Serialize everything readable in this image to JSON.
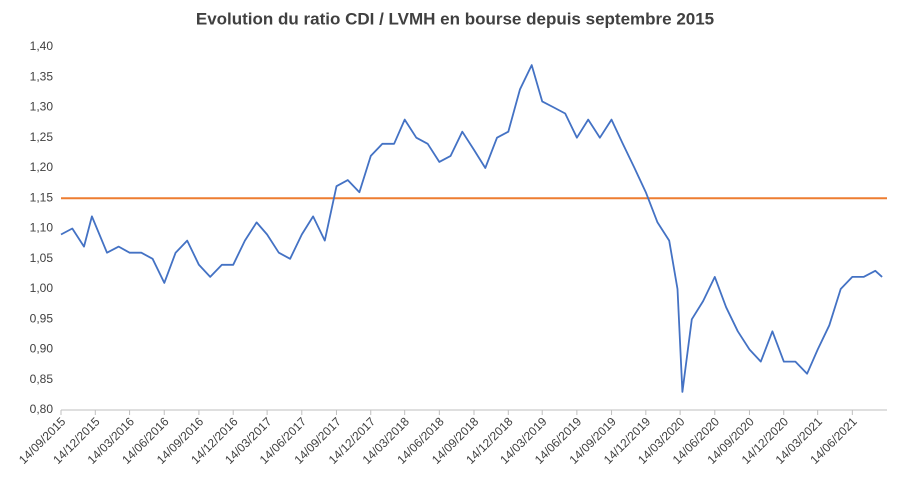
{
  "chart_data": {
    "type": "line",
    "title": "Evolution du ratio CDI / LVMH  en bourse depuis septembre 2015",
    "x": [
      "14/09/2015",
      "14/10/2015",
      "14/11/2015",
      "05/12/2015",
      "14/01/2016",
      "14/02/2016",
      "14/03/2016",
      "14/04/2016",
      "14/05/2016",
      "14/06/2016",
      "14/07/2016",
      "14/08/2016",
      "14/09/2016",
      "14/10/2016",
      "14/11/2016",
      "14/12/2016",
      "14/01/2017",
      "14/02/2017",
      "14/03/2017",
      "14/04/2017",
      "14/05/2017",
      "14/06/2017",
      "14/07/2017",
      "14/08/2017",
      "14/09/2017",
      "14/10/2017",
      "14/11/2017",
      "14/12/2017",
      "14/01/2018",
      "14/02/2018",
      "14/03/2018",
      "14/04/2018",
      "14/05/2018",
      "14/06/2018",
      "14/07/2018",
      "14/08/2018",
      "14/09/2018",
      "14/10/2018",
      "14/11/2018",
      "14/12/2018",
      "14/01/2019",
      "14/02/2019",
      "14/03/2019",
      "14/04/2019",
      "14/05/2019",
      "14/06/2019",
      "14/07/2019",
      "14/08/2019",
      "14/09/2019",
      "14/10/2019",
      "14/11/2019",
      "14/12/2019",
      "14/01/2020",
      "14/02/2020",
      "07/03/2020",
      "20/03/2020",
      "14/04/2020",
      "14/05/2020",
      "14/06/2020",
      "14/07/2020",
      "14/08/2020",
      "14/09/2020",
      "14/10/2020",
      "14/11/2020",
      "14/12/2020",
      "14/01/2021",
      "14/02/2021",
      "14/03/2021",
      "14/04/2021",
      "14/05/2021",
      "14/06/2021",
      "14/07/2021",
      "14/08/2021",
      "01/09/2021"
    ],
    "series": [
      {
        "name": "CDI / LVMH",
        "color": "#4472c4",
        "values": [
          1.09,
          1.1,
          1.07,
          1.12,
          1.06,
          1.07,
          1.06,
          1.06,
          1.05,
          1.01,
          1.06,
          1.08,
          1.04,
          1.02,
          1.04,
          1.04,
          1.08,
          1.11,
          1.09,
          1.06,
          1.05,
          1.09,
          1.12,
          1.08,
          1.17,
          1.18,
          1.16,
          1.22,
          1.24,
          1.24,
          1.28,
          1.25,
          1.24,
          1.21,
          1.22,
          1.26,
          1.23,
          1.2,
          1.25,
          1.26,
          1.33,
          1.37,
          1.31,
          1.3,
          1.29,
          1.25,
          1.28,
          1.25,
          1.28,
          1.24,
          1.2,
          1.16,
          1.11,
          1.08,
          1.0,
          0.83,
          0.95,
          0.98,
          1.02,
          0.97,
          0.93,
          0.9,
          0.88,
          0.93,
          0.88,
          0.88,
          0.86,
          0.9,
          0.94,
          1.0,
          1.02,
          1.02,
          1.03,
          1.02
        ]
      }
    ],
    "hline": {
      "value": 1.15,
      "color": "#ed7d31"
    },
    "xlim": [
      "14/09/2015",
      "14/09/2021"
    ],
    "xticks": [
      "14/09/2015",
      "14/12/2015",
      "14/03/2016",
      "14/06/2016",
      "14/09/2016",
      "14/12/2016",
      "14/03/2017",
      "14/06/2017",
      "14/09/2017",
      "14/12/2017",
      "14/03/2018",
      "14/06/2018",
      "14/09/2018",
      "14/12/2018",
      "14/03/2019",
      "14/06/2019",
      "14/09/2019",
      "14/12/2019",
      "14/03/2020",
      "14/06/2020",
      "14/09/2020",
      "14/12/2020",
      "14/03/2021",
      "14/06/2021"
    ],
    "ylim": [
      0.8,
      1.4
    ],
    "yticks": [
      {
        "value": 0.8,
        "label": "0,80"
      },
      {
        "value": 0.85,
        "label": "0,85"
      },
      {
        "value": 0.9,
        "label": "0,90"
      },
      {
        "value": 0.95,
        "label": "0,95"
      },
      {
        "value": 1.0,
        "label": "1,00"
      },
      {
        "value": 1.05,
        "label": "1,05"
      },
      {
        "value": 1.1,
        "label": "1,10"
      },
      {
        "value": 1.15,
        "label": "1,15"
      },
      {
        "value": 1.2,
        "label": "1,20"
      },
      {
        "value": 1.25,
        "label": "1,25"
      },
      {
        "value": 1.3,
        "label": "1,30"
      },
      {
        "value": 1.35,
        "label": "1,35"
      },
      {
        "value": 1.4,
        "label": "1,40"
      }
    ],
    "grid": false
  }
}
